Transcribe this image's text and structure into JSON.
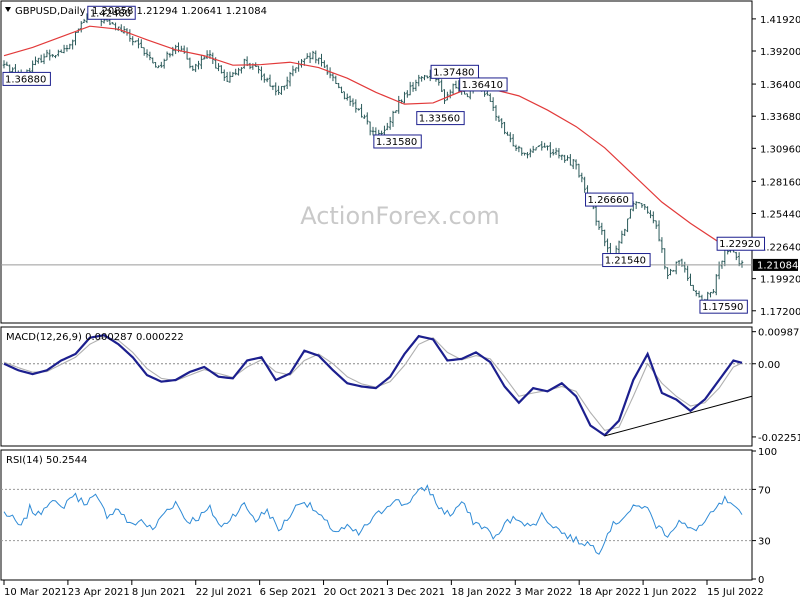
{
  "chart_data": [
    {
      "type": "ohlc",
      "title": "GBPUSD,Daily",
      "ohlc_header": "1.20858 1.21294 1.20641 1.21084",
      "watermark": "ActionForex.com",
      "current_price_label": "1.21084",
      "current_price": 1.21084,
      "ylim": [
        1.1625,
        1.4335
      ],
      "yticks": [
        "1.41920",
        "1.39200",
        "1.36400",
        "1.33680",
        "1.30960",
        "1.28160",
        "1.25440",
        "1.22640",
        "1.19920",
        "1.17200"
      ],
      "xticks": [
        "10 Mar 2021",
        "23 Apr 2021",
        "8 Jun 2021",
        "22 Jul 2021",
        "6 Sep 2021",
        "20 Oct 2021",
        "3 Dec 2021",
        "18 Jan 2022",
        "3 Mar 2022",
        "18 Apr 2022",
        "1 Jun 2022",
        "15 Jul 2022"
      ],
      "moving_average": {
        "color": "#e23a3a",
        "points": [
          [
            0,
            1.388
          ],
          [
            10,
            1.395
          ],
          [
            20,
            1.404
          ],
          [
            30,
            1.413
          ],
          [
            40,
            1.4105
          ],
          [
            50,
            1.4015
          ],
          [
            60,
            1.393
          ],
          [
            70,
            1.388
          ],
          [
            80,
            1.38
          ],
          [
            90,
            1.3805
          ],
          [
            100,
            1.3825
          ],
          [
            110,
            1.378
          ],
          [
            120,
            1.369
          ],
          [
            130,
            1.357
          ],
          [
            140,
            1.347
          ],
          [
            150,
            1.348
          ],
          [
            160,
            1.358
          ],
          [
            170,
            1.36
          ],
          [
            180,
            1.354
          ],
          [
            190,
            1.342
          ],
          [
            200,
            1.328
          ],
          [
            210,
            1.31
          ],
          [
            220,
            1.287
          ],
          [
            230,
            1.264
          ],
          [
            240,
            1.246
          ],
          [
            250,
            1.23
          ],
          [
            258,
            1.226
          ]
        ]
      },
      "series_anchors": [
        [
          0,
          1.38
        ],
        [
          6,
          1.371
        ],
        [
          14,
          1.388
        ],
        [
          22,
          1.393
        ],
        [
          26,
          1.41
        ],
        [
          30,
          1.424
        ],
        [
          36,
          1.416
        ],
        [
          42,
          1.408
        ],
        [
          48,
          1.393
        ],
        [
          54,
          1.378
        ],
        [
          60,
          1.398
        ],
        [
          66,
          1.378
        ],
        [
          72,
          1.388
        ],
        [
          78,
          1.365
        ],
        [
          84,
          1.383
        ],
        [
          90,
          1.373
        ],
        [
          96,
          1.356
        ],
        [
          102,
          1.378
        ],
        [
          108,
          1.388
        ],
        [
          114,
          1.373
        ],
        [
          120,
          1.35
        ],
        [
          126,
          1.336
        ],
        [
          130,
          1.318
        ],
        [
          134,
          1.326
        ],
        [
          138,
          1.348
        ],
        [
          142,
          1.36
        ],
        [
          146,
          1.37
        ],
        [
          150,
          1.374
        ],
        [
          154,
          1.352
        ],
        [
          158,
          1.364
        ],
        [
          162,
          1.356
        ],
        [
          166,
          1.366
        ],
        [
          170,
          1.348
        ],
        [
          176,
          1.318
        ],
        [
          182,
          1.306
        ],
        [
          188,
          1.313
        ],
        [
          194,
          1.303
        ],
        [
          200,
          1.296
        ],
        [
          204,
          1.268
        ],
        [
          208,
          1.245
        ],
        [
          212,
          1.215
        ],
        [
          216,
          1.236
        ],
        [
          220,
          1.265
        ],
        [
          224,
          1.262
        ],
        [
          228,
          1.246
        ],
        [
          232,
          1.2
        ],
        [
          236,
          1.215
        ],
        [
          240,
          1.196
        ],
        [
          244,
          1.178
        ],
        [
          248,
          1.19
        ],
        [
          252,
          1.226
        ],
        [
          255,
          1.222
        ],
        [
          258,
          1.21
        ]
      ],
      "annotations": [
        {
          "text": "1.42480",
          "x": 30,
          "y": 1.4248
        },
        {
          "text": "1.36880",
          "x": 0,
          "y": 1.3688
        },
        {
          "text": "1.37480",
          "x": 150,
          "y": 1.3748
        },
        {
          "text": "1.36410",
          "x": 160,
          "y": 1.3641
        },
        {
          "text": "1.33560",
          "x": 145,
          "y": 1.3356
        },
        {
          "text": "1.31580",
          "x": 130,
          "y": 1.3158
        },
        {
          "text": "1.26660",
          "x": 204,
          "y": 1.2666
        },
        {
          "text": "1.21540",
          "x": 210,
          "y": 1.2154
        },
        {
          "text": "1.22920",
          "x": 250,
          "y": 1.2292
        },
        {
          "text": "1.17590",
          "x": 244,
          "y": 1.1759
        }
      ]
    },
    {
      "type": "line",
      "title": "MACD(12,26,9) 0.000287 0.000222",
      "ylim": [
        -0.025,
        0.011
      ],
      "yticks": [
        "0.009872",
        "0.00",
        "-0.022516"
      ],
      "series": [
        {
          "name": "MACD",
          "color": "#1c1f8e",
          "values": [
            [
              0,
              0.0
            ],
            [
              5,
              -0.002
            ],
            [
              10,
              -0.0032
            ],
            [
              15,
              -0.002
            ],
            [
              20,
              0.001
            ],
            [
              25,
              0.003
            ],
            [
              30,
              0.008
            ],
            [
              35,
              0.0088
            ],
            [
              40,
              0.006
            ],
            [
              45,
              0.002
            ],
            [
              50,
              -0.0035
            ],
            [
              55,
              -0.0055
            ],
            [
              60,
              -0.005
            ],
            [
              65,
              -0.0025
            ],
            [
              70,
              -0.001
            ],
            [
              75,
              -0.004
            ],
            [
              80,
              -0.0045
            ],
            [
              85,
              0.001
            ],
            [
              90,
              0.002
            ],
            [
              95,
              -0.005
            ],
            [
              100,
              -0.003
            ],
            [
              105,
              0.004
            ],
            [
              110,
              0.0025
            ],
            [
              115,
              -0.002
            ],
            [
              120,
              -0.006
            ],
            [
              125,
              -0.007
            ],
            [
              130,
              -0.0075
            ],
            [
              135,
              -0.004
            ],
            [
              140,
              0.003
            ],
            [
              145,
              0.0085
            ],
            [
              150,
              0.0075
            ],
            [
              155,
              0.001
            ],
            [
              160,
              0.0015
            ],
            [
              165,
              0.0035
            ],
            [
              170,
              0.0005
            ],
            [
              175,
              -0.007
            ],
            [
              180,
              -0.012
            ],
            [
              185,
              -0.0075
            ],
            [
              190,
              -0.0085
            ],
            [
              195,
              -0.006
            ],
            [
              200,
              -0.01
            ],
            [
              205,
              -0.019
            ],
            [
              210,
              -0.022
            ],
            [
              215,
              -0.0175
            ],
            [
              220,
              -0.005
            ],
            [
              225,
              0.003
            ],
            [
              230,
              -0.009
            ],
            [
              235,
              -0.011
            ],
            [
              240,
              -0.0145
            ],
            [
              245,
              -0.011
            ],
            [
              250,
              -0.005
            ],
            [
              255,
              0.001
            ],
            [
              258,
              0.0003
            ]
          ]
        },
        {
          "name": "Signal",
          "color": "#b0b0b0",
          "values": [
            [
              0,
              0.0005
            ],
            [
              5,
              -0.0012
            ],
            [
              10,
              -0.0026
            ],
            [
              15,
              -0.0024
            ],
            [
              20,
              -0.0002
            ],
            [
              25,
              0.002
            ],
            [
              30,
              0.006
            ],
            [
              35,
              0.0082
            ],
            [
              40,
              0.0072
            ],
            [
              45,
              0.0035
            ],
            [
              50,
              -0.0015
            ],
            [
              55,
              -0.0045
            ],
            [
              60,
              -0.0052
            ],
            [
              65,
              -0.0035
            ],
            [
              70,
              -0.0018
            ],
            [
              75,
              -0.003
            ],
            [
              80,
              -0.0042
            ],
            [
              85,
              -0.001
            ],
            [
              90,
              0.0012
            ],
            [
              95,
              -0.0025
            ],
            [
              100,
              -0.0035
            ],
            [
              105,
              0.001
            ],
            [
              110,
              0.003
            ],
            [
              115,
              0.0
            ],
            [
              120,
              -0.004
            ],
            [
              125,
              -0.0062
            ],
            [
              130,
              -0.0072
            ],
            [
              135,
              -0.0055
            ],
            [
              140,
              -0.0005
            ],
            [
              145,
              0.006
            ],
            [
              150,
              0.008
            ],
            [
              155,
              0.0035
            ],
            [
              160,
              0.0012
            ],
            [
              165,
              0.0025
            ],
            [
              170,
              0.0015
            ],
            [
              175,
              -0.004
            ],
            [
              180,
              -0.01
            ],
            [
              185,
              -0.009
            ],
            [
              190,
              -0.0082
            ],
            [
              195,
              -0.007
            ],
            [
              200,
              -0.0085
            ],
            [
              205,
              -0.015
            ],
            [
              210,
              -0.0205
            ],
            [
              215,
              -0.0195
            ],
            [
              220,
              -0.01
            ],
            [
              225,
              0.0
            ],
            [
              230,
              -0.006
            ],
            [
              235,
              -0.01
            ],
            [
              240,
              -0.013
            ],
            [
              245,
              -0.012
            ],
            [
              250,
              -0.0075
            ],
            [
              255,
              -0.001
            ],
            [
              258,
              0.0002
            ]
          ]
        }
      ],
      "trendline": [
        [
          210,
          -0.0222
        ],
        [
          265,
          -0.01
        ]
      ]
    },
    {
      "type": "line",
      "title": "RSI(14) 50.2544",
      "ylim": [
        0,
        100
      ],
      "yticks": [
        "100",
        "70",
        "30",
        "0"
      ],
      "levels": [
        70,
        30
      ],
      "series": [
        {
          "name": "RSI",
          "color": "#2f8bd6",
          "values": [
            [
              0,
              52
            ],
            [
              3,
              47
            ],
            [
              6,
              40
            ],
            [
              9,
              55
            ],
            [
              12,
              50
            ],
            [
              16,
              62
            ],
            [
              20,
              55
            ],
            [
              24,
              66
            ],
            [
              28,
              60
            ],
            [
              32,
              64
            ],
            [
              36,
              50
            ],
            [
              40,
              55
            ],
            [
              44,
              42
            ],
            [
              48,
              46
            ],
            [
              52,
              38
            ],
            [
              56,
              52
            ],
            [
              60,
              60
            ],
            [
              64,
              45
            ],
            [
              68,
              48
            ],
            [
              72,
              55
            ],
            [
              76,
              40
            ],
            [
              80,
              50
            ],
            [
              84,
              58
            ],
            [
              88,
              46
            ],
            [
              92,
              54
            ],
            [
              96,
              38
            ],
            [
              100,
              50
            ],
            [
              104,
              62
            ],
            [
              108,
              55
            ],
            [
              112,
              45
            ],
            [
              116,
              37
            ],
            [
              120,
              40
            ],
            [
              124,
              35
            ],
            [
              128,
              45
            ],
            [
              132,
              53
            ],
            [
              136,
              62
            ],
            [
              140,
              58
            ],
            [
              144,
              66
            ],
            [
              148,
              72
            ],
            [
              152,
              56
            ],
            [
              156,
              50
            ],
            [
              160,
              60
            ],
            [
              164,
              45
            ],
            [
              168,
              40
            ],
            [
              172,
              32
            ],
            [
              176,
              45
            ],
            [
              180,
              48
            ],
            [
              184,
              40
            ],
            [
              188,
              50
            ],
            [
              192,
              42
            ],
            [
              196,
              35
            ],
            [
              200,
              30
            ],
            [
              204,
              28
            ],
            [
              208,
              22
            ],
            [
              212,
              40
            ],
            [
              216,
              48
            ],
            [
              220,
              55
            ],
            [
              224,
              58
            ],
            [
              228,
              42
            ],
            [
              232,
              35
            ],
            [
              236,
              45
            ],
            [
              240,
              38
            ],
            [
              244,
              42
            ],
            [
              248,
              52
            ],
            [
              252,
              62
            ],
            [
              255,
              55
            ],
            [
              258,
              50
            ]
          ]
        }
      ]
    }
  ]
}
